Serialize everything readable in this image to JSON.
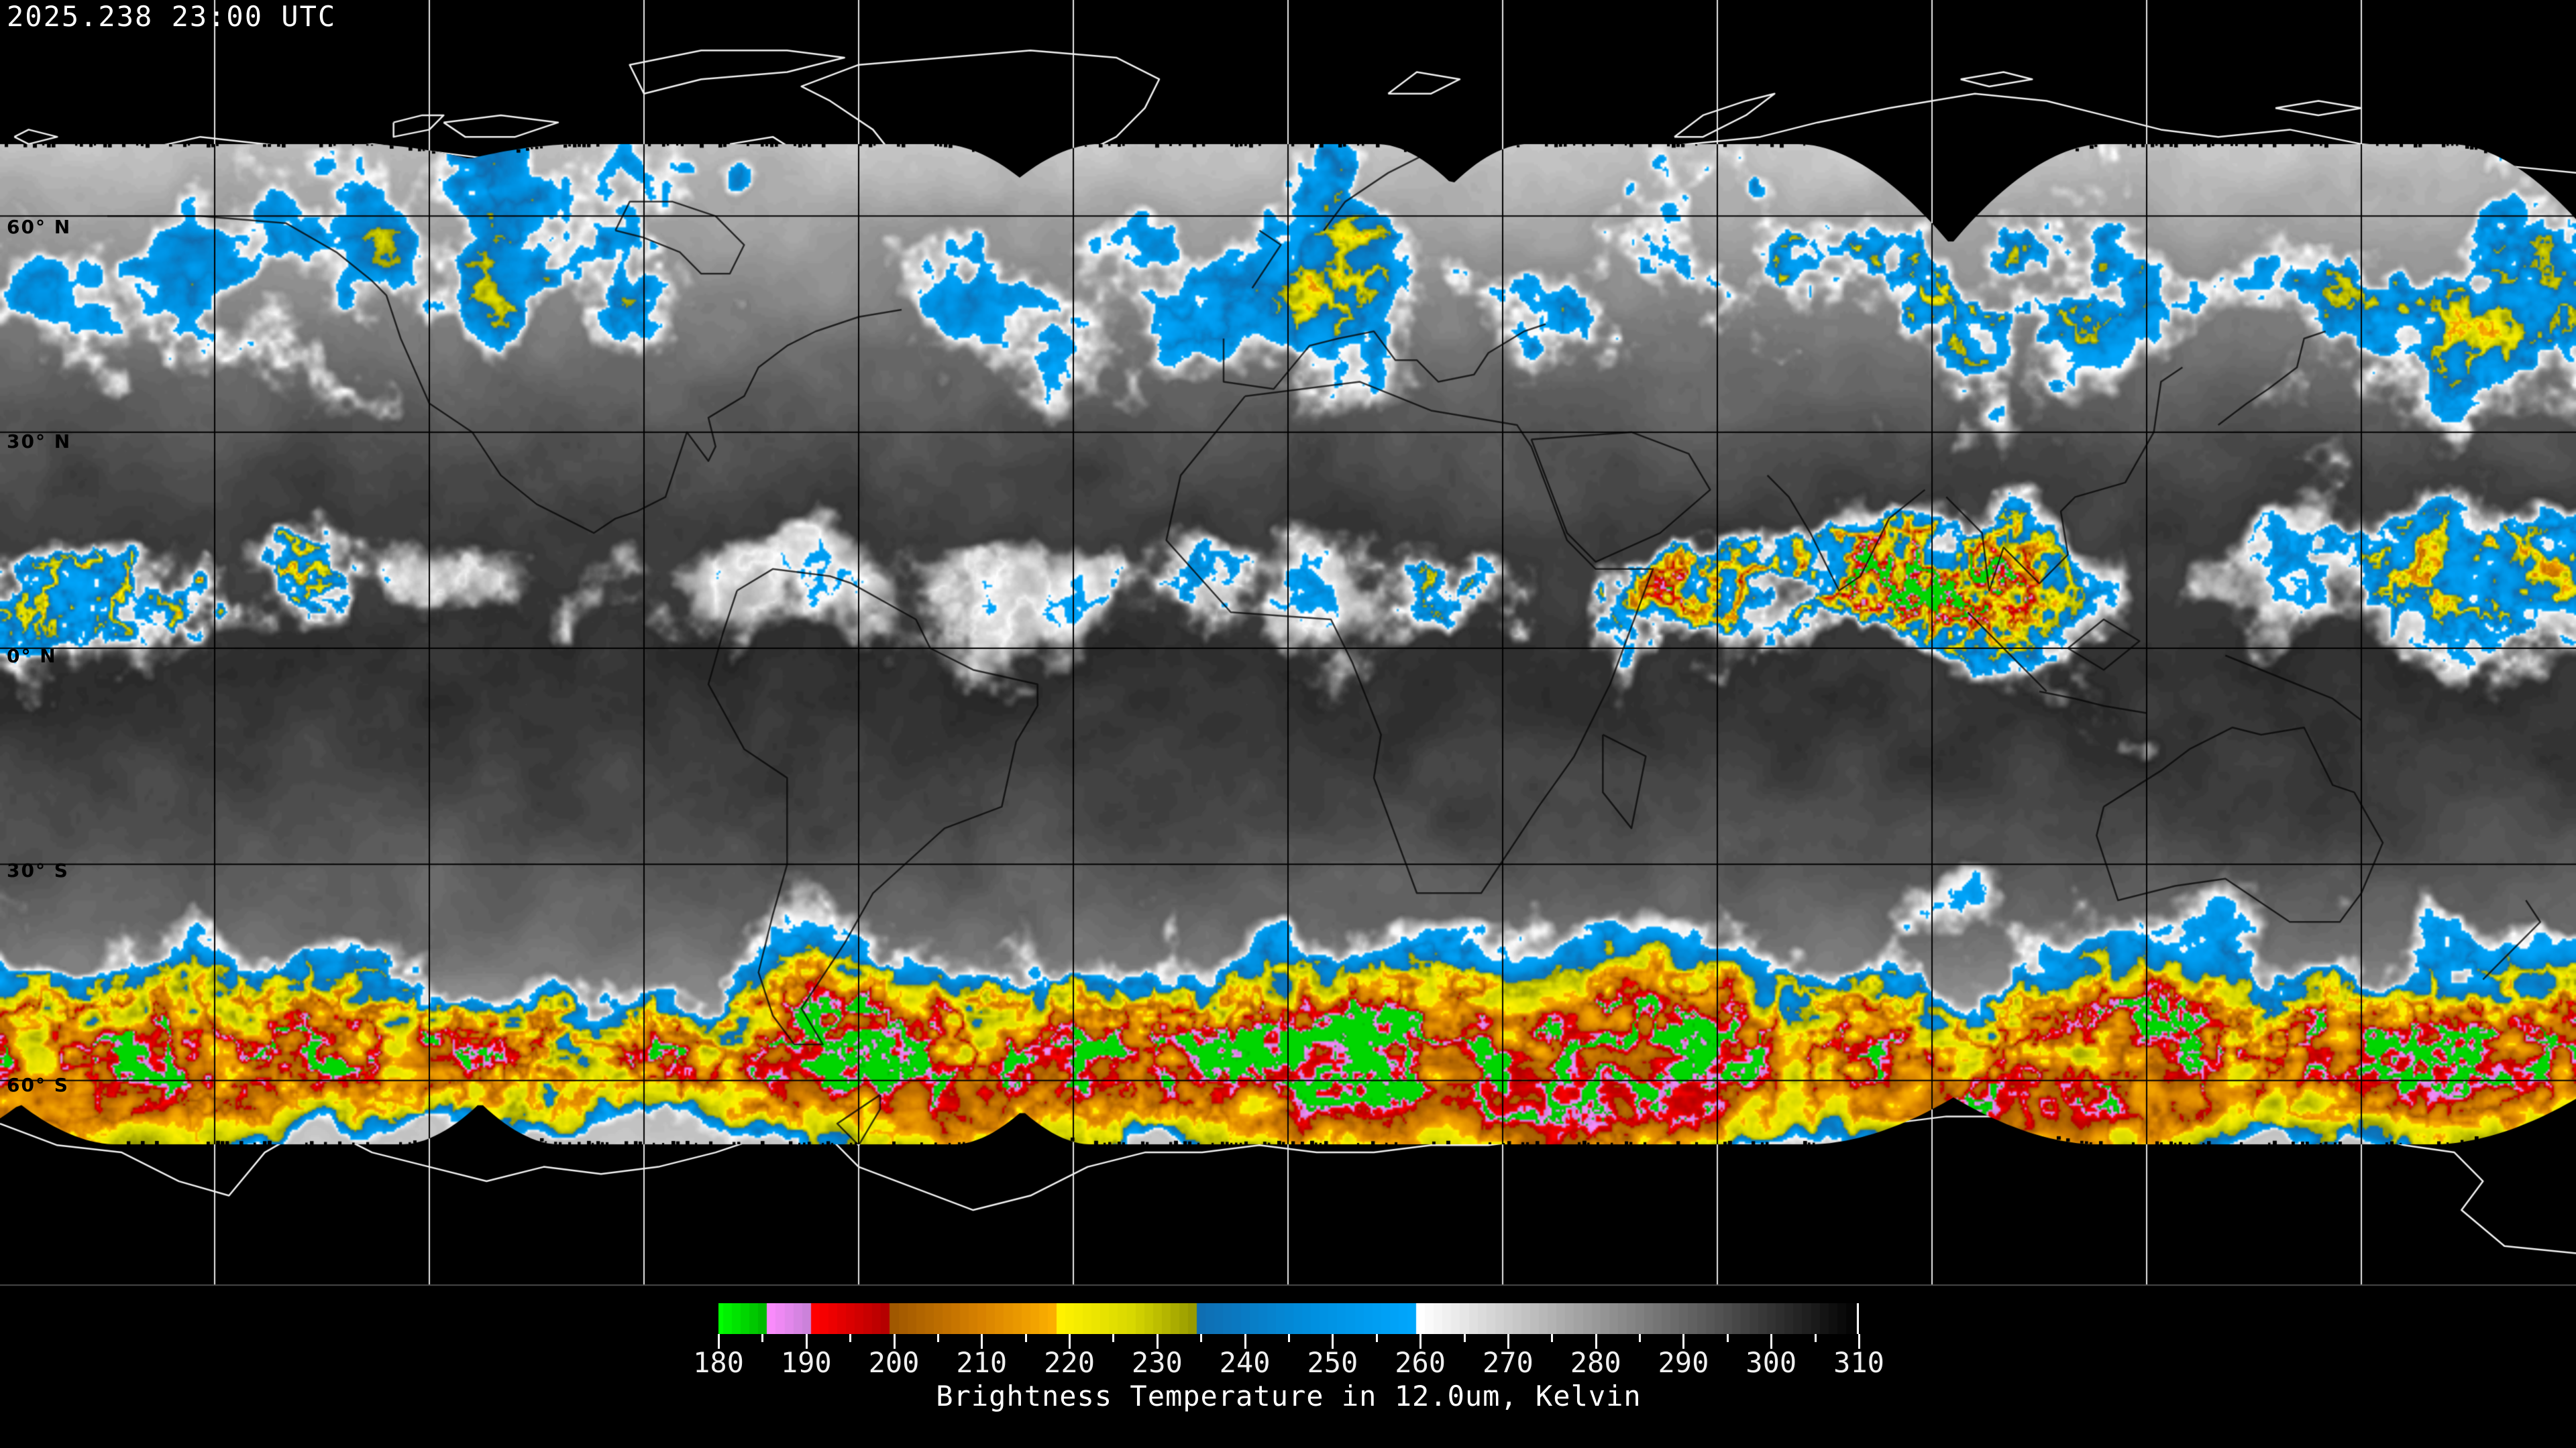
{
  "header": {
    "timestamp": "2025.238 23:00 UTC"
  },
  "map": {
    "latitude_labels": [
      {
        "text": "60° N"
      },
      {
        "text": "30° N"
      },
      {
        "text": "0° N"
      },
      {
        "text": "30° S"
      },
      {
        "text": "60° S"
      }
    ],
    "grid": {
      "lat_lines_deg": [
        60,
        30,
        0,
        -30,
        -60
      ],
      "lon_spacing_deg": 30
    }
  },
  "colorbar": {
    "title": "Brightness Temperature in 12.0um, Kelvin",
    "min_k": 180,
    "max_k": 310,
    "major_tick_step_k": 10,
    "minor_tick_step_k": 5,
    "tick_labels": [
      "180",
      "190",
      "200",
      "210",
      "220",
      "230",
      "240",
      "250",
      "260",
      "270",
      "280",
      "290",
      "300",
      "310"
    ],
    "stops": [
      [
        180,
        "#00ff00"
      ],
      [
        185.5,
        "#00b400"
      ],
      [
        185.5,
        "#ff8cff"
      ],
      [
        191,
        "#bf80d2"
      ],
      [
        191,
        "#ff0000"
      ],
      [
        200,
        "#ac0000"
      ],
      [
        200,
        "#a05800"
      ],
      [
        210,
        "#d88200"
      ],
      [
        219,
        "#ffb400"
      ],
      [
        219,
        "#fff200"
      ],
      [
        227,
        "#d8d800"
      ],
      [
        235,
        "#8f9200"
      ],
      [
        235,
        "#0f6eb2"
      ],
      [
        248,
        "#0090e0"
      ],
      [
        260,
        "#00a8ff"
      ],
      [
        260,
        "#ffffff"
      ],
      [
        310,
        "#000000"
      ]
    ]
  }
}
